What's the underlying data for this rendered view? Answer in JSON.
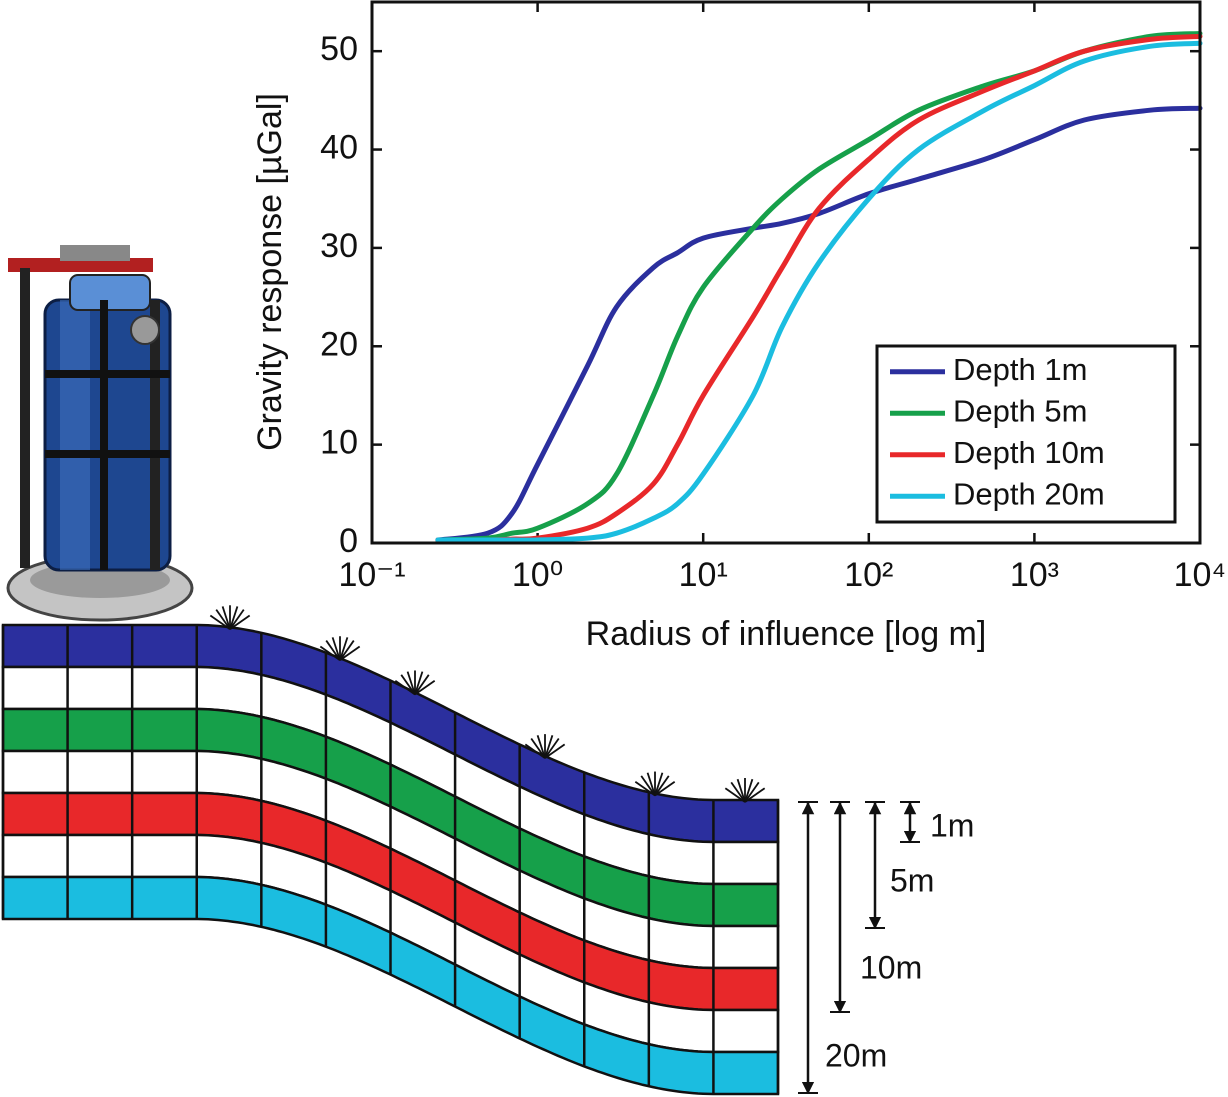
{
  "chart_data": {
    "type": "line",
    "xlabel": "Radius of influence [log m]",
    "ylabel": "Gravity response [µGal]",
    "xscale": "log",
    "xlim": [
      0.1,
      10000
    ],
    "ylim": [
      0,
      55
    ],
    "xticks": [
      {
        "value": 0.1,
        "label": "10⁻¹"
      },
      {
        "value": 1,
        "label": "10⁰"
      },
      {
        "value": 10,
        "label": "10¹"
      },
      {
        "value": 100,
        "label": "10²"
      },
      {
        "value": 1000,
        "label": "10³"
      },
      {
        "value": 10000,
        "label": "10⁴"
      }
    ],
    "yticks": [
      0,
      10,
      20,
      30,
      40,
      50
    ],
    "legend": "lower right",
    "x": [
      0.25,
      0.5,
      0.7,
      1,
      2,
      3,
      5,
      7,
      10,
      20,
      30,
      50,
      100,
      200,
      500,
      1000,
      2000,
      5000,
      10000
    ],
    "series": [
      {
        "name": "Depth 1m",
        "color": "#2b2f9e",
        "values": [
          0.3,
          1,
          3,
          8,
          18,
          24,
          28,
          29.5,
          31,
          32,
          32.5,
          33.5,
          35.5,
          37,
          39,
          41,
          43,
          44,
          44.2
        ]
      },
      {
        "name": "Depth 5m",
        "color": "#16a04a",
        "values": [
          0.3,
          0.5,
          1,
          1.5,
          4,
          7,
          15,
          21,
          26,
          32,
          35,
          38,
          41,
          44,
          46.5,
          48,
          50,
          51.5,
          51.8
        ]
      },
      {
        "name": "Depth 10m",
        "color": "#e8282a",
        "values": [
          0.3,
          0.3,
          0.4,
          0.5,
          1.5,
          3,
          6,
          10,
          15,
          23,
          28,
          34,
          39,
          43,
          46,
          48,
          50,
          51.2,
          51.5
        ]
      },
      {
        "name": "Depth 20m",
        "color": "#1bbde0",
        "values": [
          0.3,
          0.3,
          0.3,
          0.3,
          0.5,
          1,
          2.5,
          4,
          7,
          15,
          22,
          28.5,
          35,
          40,
          44,
          46.5,
          49,
          50.5,
          50.8
        ]
      }
    ]
  },
  "diagram": {
    "depth_labels": [
      "1m",
      "5m",
      "10m",
      "20m"
    ]
  }
}
